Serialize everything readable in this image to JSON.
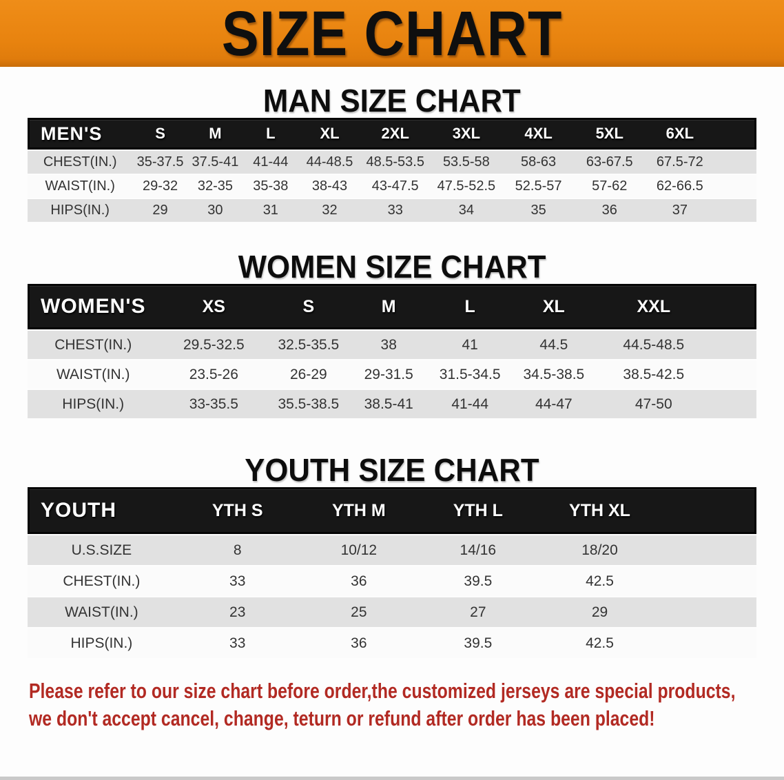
{
  "banner": {
    "title": "SIZE CHART"
  },
  "sections": [
    {
      "heading": "MAN SIZE CHART",
      "table": {
        "header": [
          "MEN'S",
          "S",
          "M",
          "L",
          "XL",
          "2XL",
          "3XL",
          "4XL",
          "5XL",
          "6XL"
        ],
        "rows": [
          [
            "CHEST(IN.)",
            "35-37.5",
            "37.5-41",
            "41-44",
            "44-48.5",
            "48.5-53.5",
            "53.5-58",
            "58-63",
            "63-67.5",
            "67.5-72"
          ],
          [
            "WAIST(IN.)",
            "29-32",
            "32-35",
            "35-38",
            "38-43",
            "43-47.5",
            "47.5-52.5",
            "52.5-57",
            "57-62",
            "62-66.5"
          ],
          [
            "HIPS(IN.)",
            "29",
            "30",
            "31",
            "32",
            "33",
            "34",
            "35",
            "36",
            "37"
          ]
        ]
      }
    },
    {
      "heading": "WOMEN SIZE CHART",
      "table": {
        "header": [
          "WOMEN'S",
          "XS",
          "S",
          "M",
          "L",
          "XL",
          "XXL"
        ],
        "rows": [
          [
            "CHEST(IN.)",
            "29.5-32.5",
            "32.5-35.5",
            "38",
            "41",
            "44.5",
            "44.5-48.5"
          ],
          [
            "WAIST(IN.)",
            "23.5-26",
            "26-29",
            "29-31.5",
            "31.5-34.5",
            "34.5-38.5",
            "38.5-42.5"
          ],
          [
            "HIPS(IN.)",
            "33-35.5",
            "35.5-38.5",
            "38.5-41",
            "41-44",
            "44-47",
            "47-50"
          ]
        ]
      }
    },
    {
      "heading": "YOUTH SIZE CHART",
      "table": {
        "header": [
          "YOUTH",
          "YTH S",
          "YTH M",
          "YTH L",
          "YTH XL"
        ],
        "rows": [
          [
            "U.S.SIZE",
            "8",
            "10/12",
            "14/16",
            "18/20"
          ],
          [
            "CHEST(IN.)",
            "33",
            "36",
            "39.5",
            "42.5"
          ],
          [
            "WAIST(IN.)",
            "23",
            "25",
            "27",
            "29"
          ],
          [
            "HIPS(IN.)",
            "33",
            "36",
            "39.5",
            "42.5"
          ]
        ]
      }
    }
  ],
  "disclaimer": {
    "line1": "Please refer to our size chart before order,the customized jerseys are special products,",
    "line2": "we don't accept cancel, change, teturn or refund after order has been placed!"
  },
  "colors": {
    "banner_orange": "#E8830F",
    "header_bar_black": "#171717",
    "row_gray": "#E1E1E1",
    "row_white": "#FBFBFB",
    "disclaimer_red": "#B22A23"
  }
}
